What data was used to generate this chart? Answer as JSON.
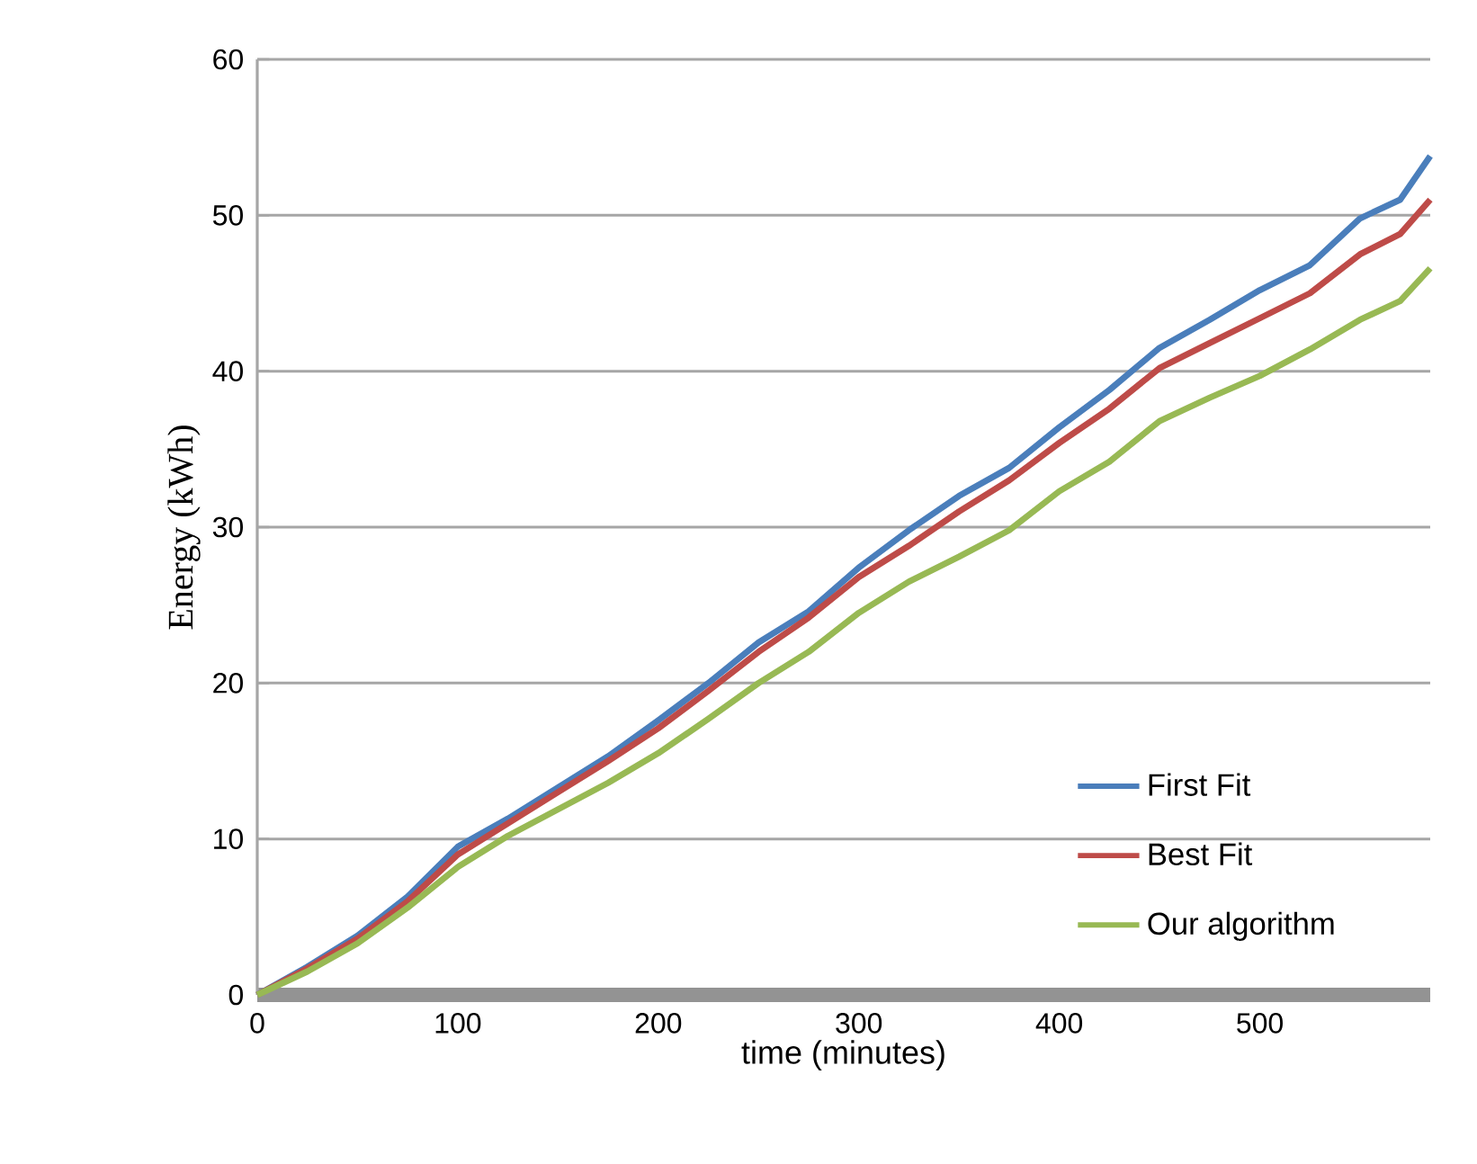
{
  "chart_data": {
    "type": "line",
    "xlabel": "time (minutes)",
    "ylabel": "Energy (kWh)",
    "xlim": [
      0,
      585
    ],
    "ylim": [
      0,
      60
    ],
    "xticks": [
      0,
      100,
      200,
      300,
      400,
      500
    ],
    "yticks": [
      0,
      10,
      20,
      30,
      40,
      50,
      60
    ],
    "grid": "y",
    "legend": "bottom right",
    "marker": "none",
    "line_style": "solid",
    "x": [
      0,
      25,
      50,
      75,
      100,
      125,
      150,
      175,
      200,
      225,
      250,
      275,
      300,
      325,
      350,
      375,
      400,
      425,
      450,
      475,
      500,
      525,
      550,
      570,
      585
    ],
    "series": [
      {
        "name": "First Fit",
        "color": "#4a7ebb",
        "values": [
          0,
          1.8,
          3.8,
          6.3,
          9.5,
          11.3,
          13.3,
          15.3,
          17.6,
          20,
          22.6,
          24.6,
          27.4,
          29.8,
          32,
          33.8,
          36.4,
          38.8,
          41.5,
          43.3,
          45.2,
          46.8,
          49.8,
          51,
          53.8
        ]
      },
      {
        "name": "Best Fit",
        "color": "#be4b48",
        "values": [
          0,
          1.7,
          3.6,
          6,
          9,
          11,
          13,
          15,
          17.1,
          19.5,
          22,
          24.2,
          26.8,
          28.8,
          31,
          33,
          35.4,
          37.6,
          40.2,
          41.8,
          43.4,
          45,
          47.5,
          48.8,
          51
        ]
      },
      {
        "name": "Our algorithm",
        "color": "#98b954",
        "values": [
          0,
          1.5,
          3.3,
          5.6,
          8.2,
          10.2,
          11.9,
          13.6,
          15.5,
          17.7,
          20,
          22,
          24.5,
          26.5,
          28.1,
          29.8,
          32.3,
          34.2,
          36.8,
          38.3,
          39.7,
          41.4,
          43.3,
          44.5,
          46.6
        ]
      }
    ]
  }
}
